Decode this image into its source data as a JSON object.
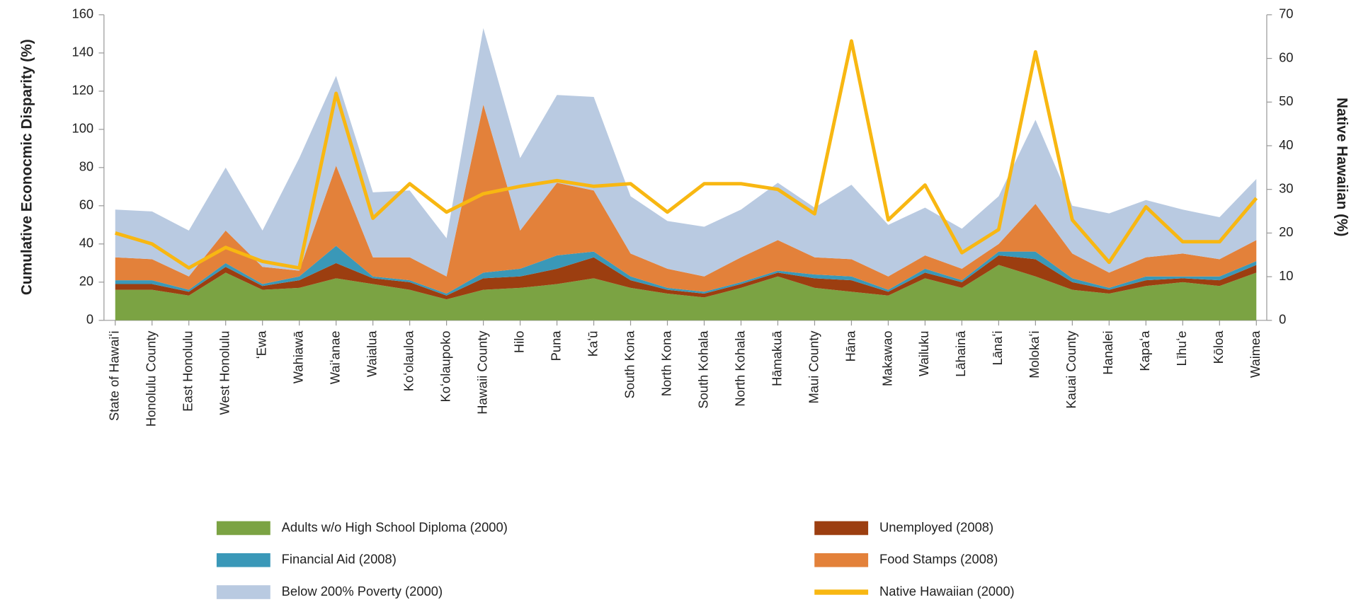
{
  "chart_data": {
    "type": "area",
    "y_label": "Cumulative Econocmic Disparity (%)",
    "y2_label": "Native Hawaiian (%)",
    "categories": [
      "State of Hawaiʻi",
      "Honolulu County",
      "East Honolulu",
      "West Honolulu",
      "ʻEwa",
      "Wahiawā",
      "Waiʻanae",
      "Waialua",
      "Koʻolauloa",
      "Koʻolaupoko",
      "Hawaii County",
      "Hilo",
      "Puna",
      "Kaʻū",
      "South Kona",
      "North Kona",
      "South Kohala",
      "North Kohala",
      "Hāmakuā",
      "Maui County",
      "Hāna",
      "Makawao",
      "Wailuku",
      "Lāhainā",
      "Lānaʻi",
      "Molokaʻi",
      "Kauai County",
      "Hanalei",
      "Kapaʻa",
      "Līhuʻe",
      "Kōloa",
      "Waimea"
    ],
    "ylim": [
      0,
      160
    ],
    "yticks": [
      0,
      20,
      40,
      60,
      80,
      100,
      120,
      140,
      160
    ],
    "y2lim": [
      0,
      70
    ],
    "y2ticks": [
      0,
      10,
      20,
      30,
      40,
      50,
      60,
      70
    ],
    "grid": false,
    "legend": "bottom",
    "series": [
      {
        "name": "Adults w/o High School Diploma (2000)",
        "color": "#7ba343",
        "values": [
          16,
          16,
          13,
          25,
          16,
          17,
          22,
          19,
          16,
          11,
          16,
          17,
          19,
          22,
          17,
          14,
          12,
          17,
          23,
          17,
          15,
          13,
          22,
          17,
          29,
          23,
          16,
          14,
          18,
          20,
          18,
          25
        ]
      },
      {
        "name": "Unemployed (2008)",
        "color": "#9c3e10",
        "values": [
          3,
          3,
          2,
          3,
          2,
          4,
          8,
          3,
          4,
          2,
          6,
          6,
          8,
          11,
          4,
          2,
          2,
          2,
          2,
          5,
          6,
          2,
          3,
          3,
          5,
          9,
          4,
          2,
          3,
          2,
          3,
          4
        ]
      },
      {
        "name": "Financial Aid (2008)",
        "color": "#3a98b8",
        "values": [
          2,
          2,
          1,
          2,
          1,
          2,
          9,
          1,
          1,
          1,
          3,
          4,
          7,
          3,
          2,
          1,
          1,
          1,
          1,
          2,
          2,
          1,
          2,
          1,
          2,
          4,
          2,
          1,
          2,
          1,
          2,
          2
        ]
      },
      {
        "name": "Food Stamps (2008)",
        "color": "#e3813a",
        "values": [
          12,
          11,
          7,
          17,
          9,
          3,
          42,
          10,
          12,
          9,
          88,
          20,
          38,
          32,
          12,
          10,
          8,
          13,
          16,
          9,
          9,
          7,
          7,
          6,
          4,
          25,
          13,
          8,
          10,
          12,
          9,
          11
        ]
      },
      {
        "name": "Below 200% Poverty (2000)",
        "color": "#b9cae1",
        "values": [
          25,
          25,
          24,
          33,
          19,
          59,
          47,
          34,
          35,
          20,
          40,
          38,
          46,
          49,
          30,
          25,
          26,
          25,
          30,
          26,
          39,
          27,
          25,
          21,
          25,
          44,
          25,
          31,
          30,
          23,
          22,
          32
        ]
      },
      {
        "name": "Native Hawaiian (2000)",
        "color": "#f8b712",
        "type": "line",
        "axis": "y2",
        "values": [
          20,
          17.5,
          12,
          16.7,
          13.5,
          12,
          52,
          23.4,
          31.3,
          24.8,
          29,
          30.7,
          32,
          30.7,
          31.3,
          24.8,
          31.3,
          31.3,
          30,
          24.4,
          64,
          23,
          31,
          15.5,
          20.8,
          61.5,
          23,
          13.3,
          26,
          18,
          18,
          28
        ]
      }
    ]
  }
}
